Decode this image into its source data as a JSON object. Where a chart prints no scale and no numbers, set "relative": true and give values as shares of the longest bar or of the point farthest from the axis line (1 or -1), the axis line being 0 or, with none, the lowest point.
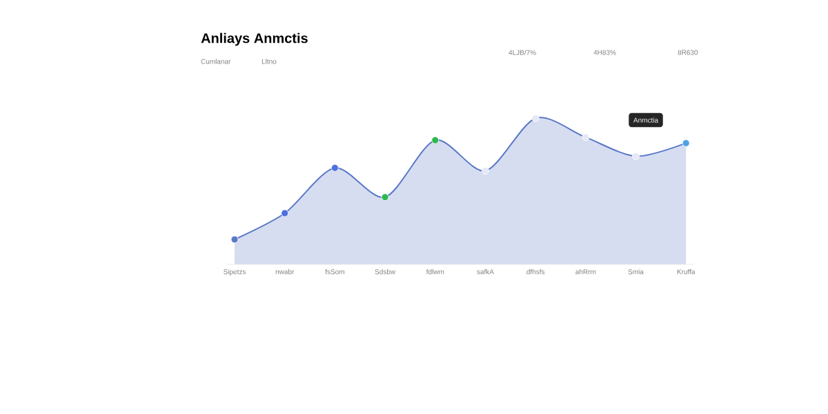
{
  "chart_data": {
    "type": "area",
    "title": "Anliays Anmctis",
    "relative": true,
    "categories": [
      "Sipetzs",
      "nwabr",
      "fsSom",
      "Sdsbw",
      "fdlwm",
      "safkA",
      "dfhsfs",
      "ahRrm",
      "Smia",
      "Kruffa"
    ],
    "series": [
      {
        "color": "#5a78c8",
        "values": [
          0.17,
          0.35,
          0.66,
          0.46,
          0.85,
          0.64,
          1,
          0.87,
          0.74,
          0.83
        ],
        "colors": [
          "#5a78c8",
          "#4f6fe0",
          "#4f6fe0",
          "#2eb84f",
          "#2eb84f",
          "#e6e8f5",
          "#e6e8f5",
          "#e6e8f5",
          "#e6e8f5",
          "#4ea3e6"
        ]
      }
    ],
    "marker": "circle",
    "annotations": [
      "Cumlanar",
      "Lltno",
      "4LJB/7%",
      "4H83%",
      "8R630",
      "Anmctia"
    ]
  }
}
